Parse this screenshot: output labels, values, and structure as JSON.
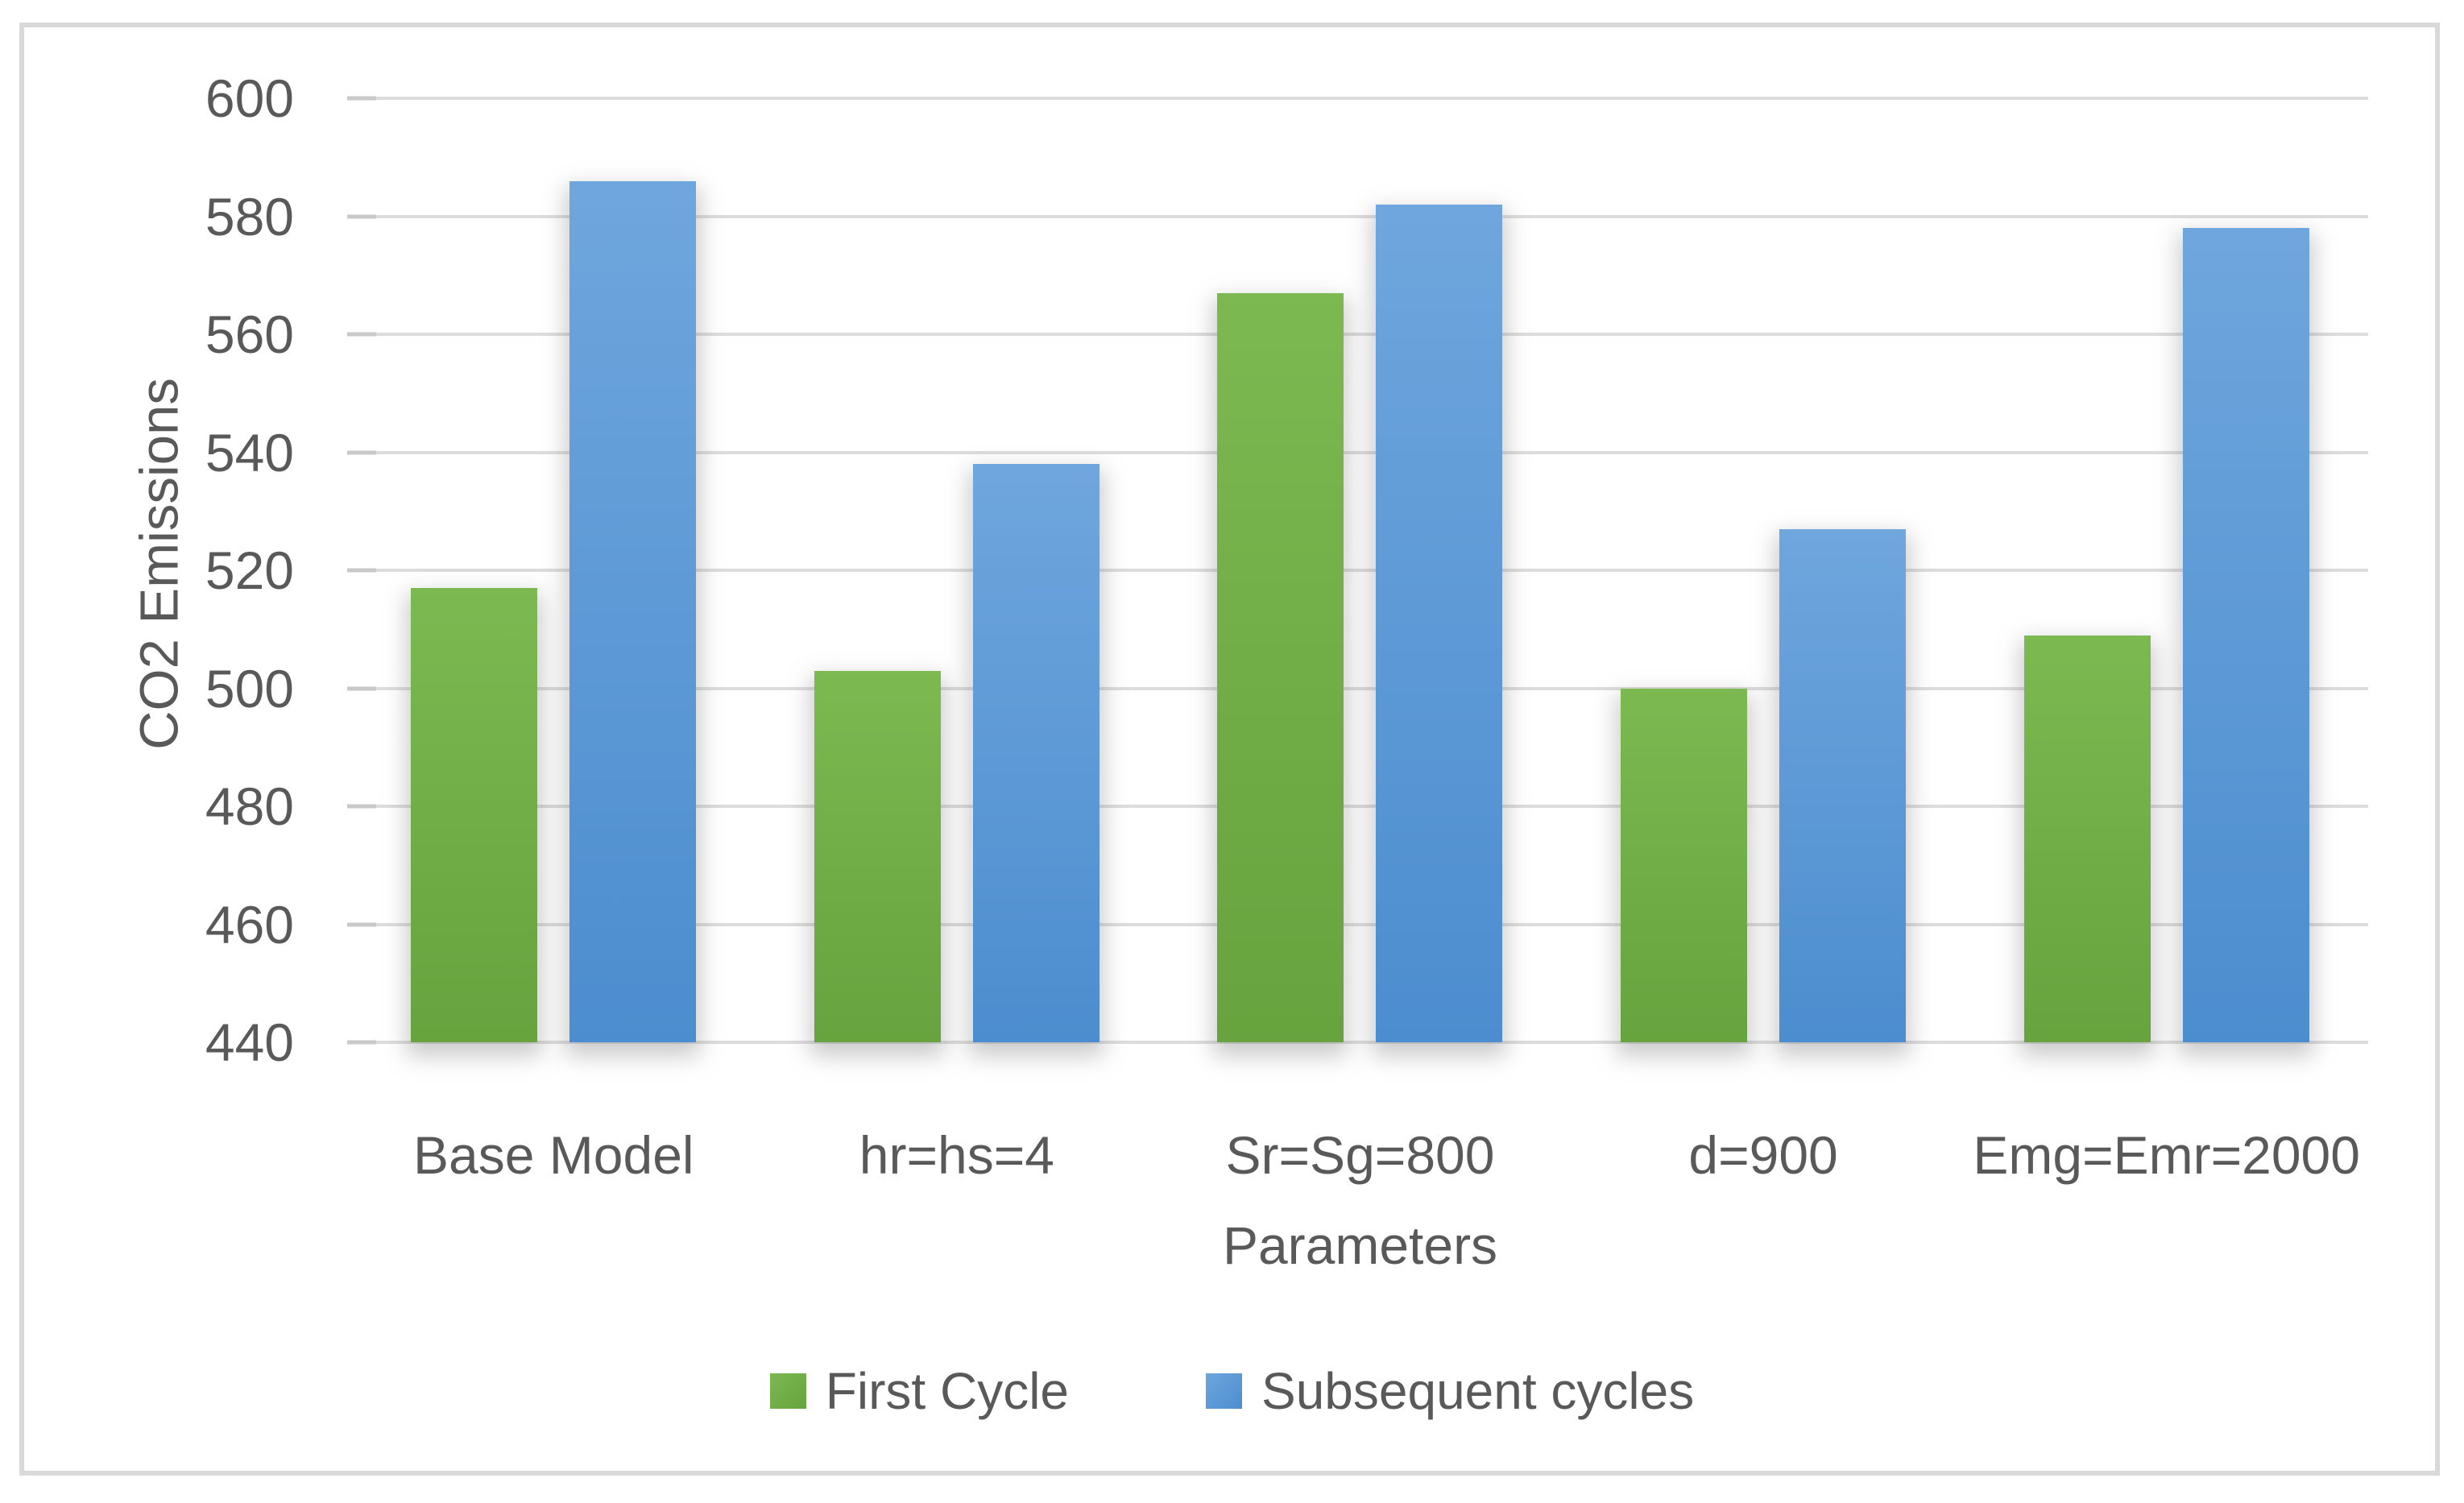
{
  "chart_data": {
    "type": "bar",
    "title": "",
    "categories": [
      "Base Model",
      "hr=hs=4",
      "Sr=Sg=800",
      "d=900",
      "Emg=Emr=2000"
    ],
    "series": [
      {
        "name": "First Cycle",
        "color": "#70AD47",
        "gradient_top": "#7cb951",
        "gradient_bottom": "#67a33e",
        "values": [
          517,
          503,
          567,
          500,
          509
        ]
      },
      {
        "name": "Subsequent cycles",
        "color": "#5B9BD5",
        "gradient_top": "#6fa6dd",
        "gradient_bottom": "#4c8dcf",
        "values": [
          586,
          538,
          582,
          527,
          578
        ]
      }
    ],
    "xlabel": "Parameters",
    "ylabel": "CO2 Emissions",
    "ylim": [
      440,
      600
    ],
    "yticks": [
      600,
      580,
      560,
      540,
      520,
      500,
      480,
      460,
      440
    ],
    "grid": true,
    "legend_position": "bottom"
  },
  "style": {
    "gridline_color": "#dcdcdc",
    "tick_color": "#c9c9c9",
    "text_color": "#595959",
    "frame_border_color": "#d9d9d9",
    "background": "#ffffff"
  }
}
